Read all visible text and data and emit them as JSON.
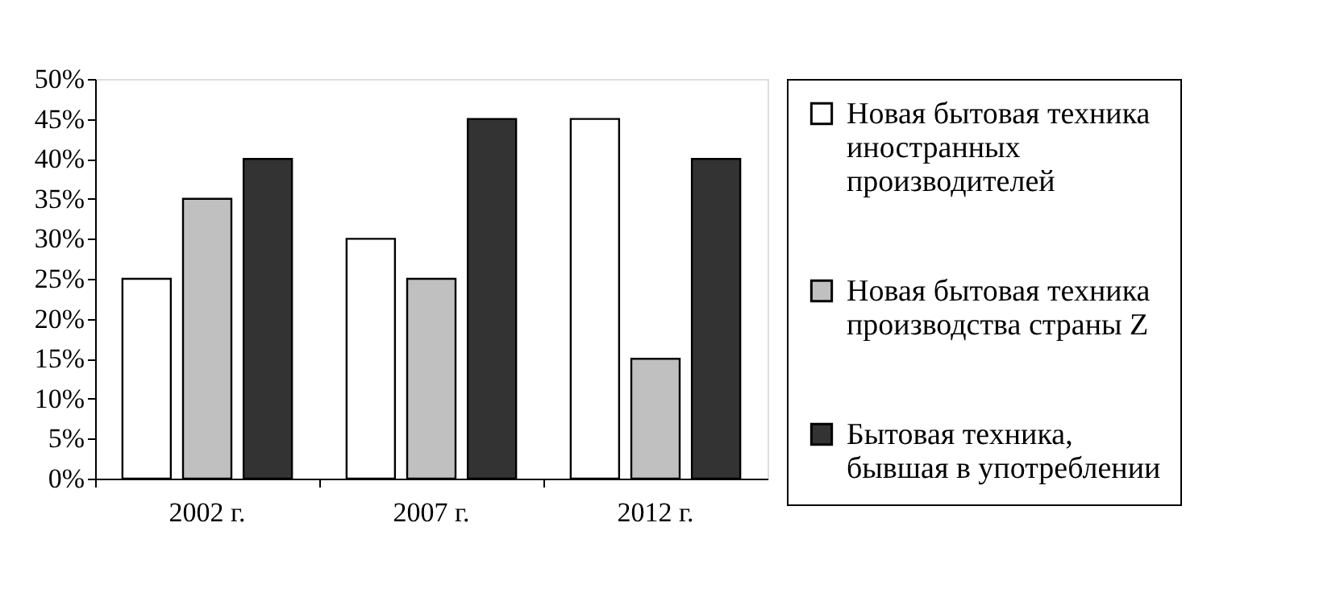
{
  "chart_data": {
    "type": "bar",
    "categories": [
      "2002 г.",
      "2007 г.",
      "2012 г."
    ],
    "series": [
      {
        "name": "Новая бытовая техника иностранных производителей",
        "color": "#ffffff",
        "values": [
          25,
          30,
          45
        ]
      },
      {
        "name": "Новая бытовая техника производства страны Z",
        "color": "#c0c0c0",
        "values": [
          35,
          25,
          15
        ]
      },
      {
        "name": "Бытовая техника, бывшая в употреблении",
        "color": "#333333",
        "values": [
          40,
          45,
          40
        ]
      }
    ],
    "ylim": [
      0,
      50
    ],
    "yticks": [
      {
        "value": 0,
        "label": "0%"
      },
      {
        "value": 5,
        "label": "5%"
      },
      {
        "value": 10,
        "label": "10%"
      },
      {
        "value": 15,
        "label": "15%"
      },
      {
        "value": 20,
        "label": "20%"
      },
      {
        "value": 25,
        "label": "25%"
      },
      {
        "value": 30,
        "label": "30%"
      },
      {
        "value": 35,
        "label": "35%"
      },
      {
        "value": 40,
        "label": "40%"
      },
      {
        "value": 45,
        "label": "45%"
      },
      {
        "value": 50,
        "label": "50%"
      }
    ],
    "grid": false,
    "legend": "right"
  }
}
